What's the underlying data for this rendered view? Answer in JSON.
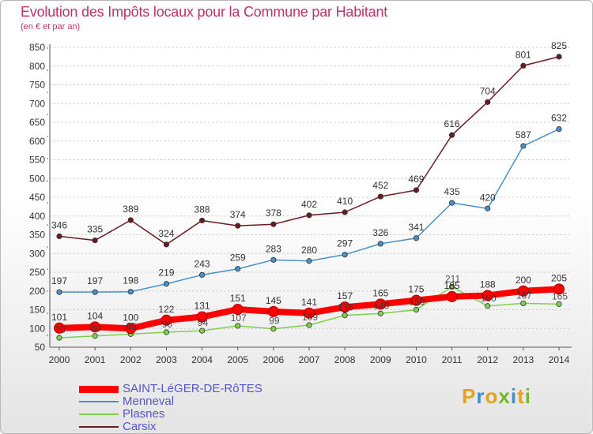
{
  "title": "Evolution des Impôts locaux pour la Commune par Habitant",
  "subtitle": "(en € et par an)",
  "logo": {
    "letters": [
      "P",
      "r",
      "o",
      "x",
      "i",
      "t",
      "i"
    ],
    "colors": [
      "#e6a21c",
      "#3f8fd0",
      "#e6a21c",
      "#76b82a",
      "#3f8fd0",
      "#e6a21c",
      "#76b82a"
    ]
  },
  "chart_data": {
    "type": "line",
    "x": [
      2000,
      2001,
      2002,
      2003,
      2004,
      2005,
      2006,
      2007,
      2008,
      2009,
      2010,
      2011,
      2012,
      2013,
      2014
    ],
    "ylim": [
      50,
      850
    ],
    "yticks": [
      50,
      100,
      150,
      200,
      250,
      300,
      350,
      400,
      450,
      500,
      550,
      600,
      650,
      700,
      750,
      800,
      850
    ],
    "grid": true,
    "legend_position": "bottom-left",
    "series": [
      {
        "name": "SAINT-LéGER-DE-RôTES",
        "color": "#ff0000",
        "values": [
          101,
          104,
          100,
          122,
          131,
          151,
          145,
          141,
          157,
          165,
          175,
          185,
          188,
          200,
          205
        ]
      },
      {
        "name": "Menneval",
        "color": "#4a90c8",
        "values": [
          197,
          197,
          198,
          219,
          243,
          259,
          283,
          280,
          297,
          326,
          341,
          435,
          420,
          587,
          632
        ]
      },
      {
        "name": "Plasnes",
        "color": "#7fd04e",
        "values": [
          75,
          80,
          85,
          90,
          94,
          107,
          99,
          109,
          135,
          140,
          150,
          211,
          160,
          167,
          165
        ]
      },
      {
        "name": "Carsix",
        "color": "#6b1a20",
        "values": [
          346,
          335,
          389,
          324,
          388,
          374,
          378,
          402,
          410,
          452,
          469,
          616,
          704,
          801,
          825
        ]
      }
    ]
  }
}
